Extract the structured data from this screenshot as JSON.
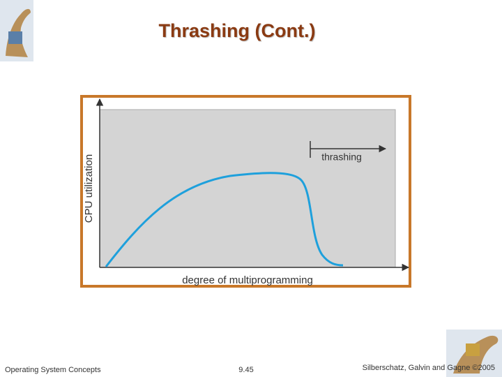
{
  "title": "Thrashing (Cont.)",
  "figure": {
    "y_label": "CPU utilization",
    "x_label": "degree of multiprogramming",
    "annotation": "thrashing"
  },
  "footer": {
    "left": "Operating System Concepts",
    "center": "9.45",
    "right": "Silberschatz, Galvin and Gagne ©2005"
  }
}
